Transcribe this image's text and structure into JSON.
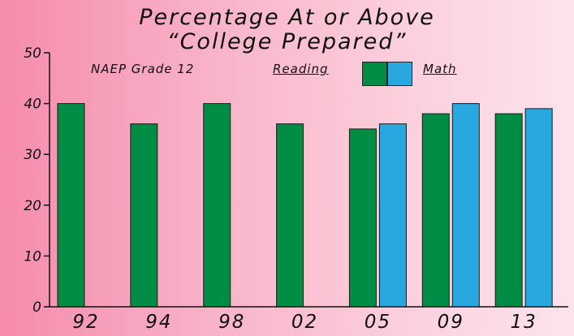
{
  "chart_data": {
    "type": "bar",
    "title": [
      "Percentage At or Above",
      "“College Prepared”"
    ],
    "subtitle": "NAEP Grade 12",
    "categories": [
      "92",
      "94",
      "98",
      "02",
      "05",
      "09",
      "13"
    ],
    "series": [
      {
        "name": "Reading",
        "color": "#008c45",
        "values": [
          40,
          36,
          40,
          36,
          35,
          38,
          38
        ]
      },
      {
        "name": "Math",
        "color": "#29a8df",
        "values": [
          null,
          null,
          null,
          null,
          36,
          40,
          39
        ]
      }
    ],
    "ylim": [
      0,
      50
    ],
    "yticks": [
      0,
      10,
      20,
      30,
      40,
      50
    ],
    "legend": "top-center",
    "grid": false
  }
}
